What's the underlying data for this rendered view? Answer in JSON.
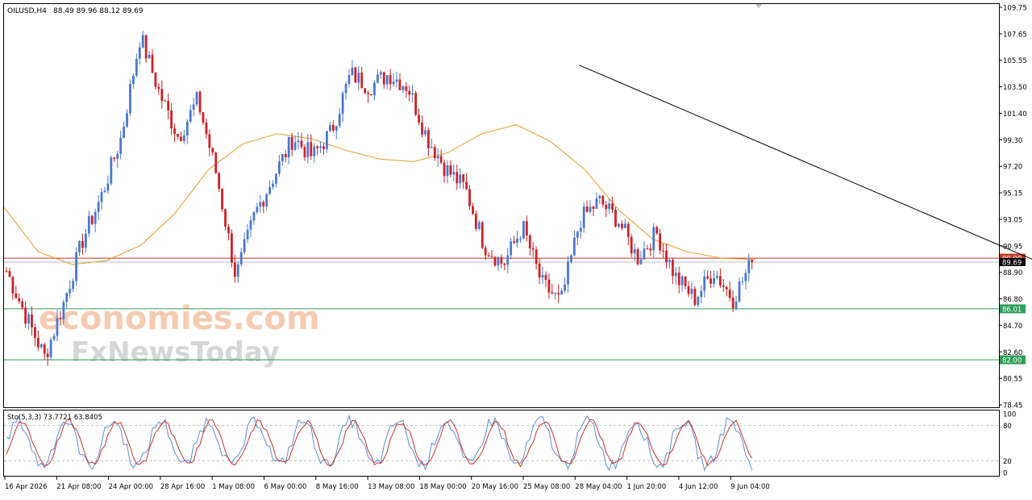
{
  "chart_data": {
    "type": "candlestick",
    "symbol_label": "OILUSD,H4",
    "ohlc_label": "88.49 89.96 88.12 89.69",
    "price_axis": {
      "ylim": [
        78.45,
        109.75
      ],
      "ticks": [
        "109.75",
        "107.65",
        "105.55",
        "103.50",
        "101.40",
        "99.30",
        "97.20",
        "95.15",
        "93.05",
        "90.95",
        "88.90",
        "86.80",
        "84.70",
        "82.60",
        "80.55",
        "78.45"
      ]
    },
    "time_axis": {
      "ticks": [
        "16 Apr 2026",
        "21 Apr 08:00",
        "24 Apr 00:00",
        "28 Apr 16:00",
        "1 May 08:00",
        "6 May 00:00",
        "8 May 16:00",
        "13 May 08:00",
        "18 May 00:00",
        "20 May 16:00",
        "25 May 08:00",
        "28 May 04:00",
        "1 Jun 20:00",
        "4 Jun 12:00",
        "9 Jun 04:00"
      ]
    },
    "price_anchors": [
      89,
      85.5,
      82.2,
      86.5,
      91.5,
      95,
      99.5,
      107.5,
      103,
      99.5,
      102.5,
      96.5,
      88.5,
      93.5,
      96.5,
      99.5,
      98,
      100,
      104.5,
      103.5,
      104.5,
      103.5,
      99.5,
      97,
      95.5,
      91,
      89.5,
      92.5,
      88,
      86.5,
      93,
      94.5,
      93,
      90,
      92,
      88.5,
      86.8,
      89,
      86.8,
      89.7
    ],
    "moving_average": [
      94,
      90.5,
      89.5,
      89.8,
      91,
      93.5,
      97,
      99,
      99.8,
      99.4,
      98.5,
      97.8,
      97.6,
      98.3,
      99.8,
      100.5,
      99.2,
      97,
      93.8,
      91.5,
      90.5,
      90,
      89.9
    ],
    "current_price": "89.69",
    "levels": [
      {
        "value": 90.0,
        "label": "90.00",
        "color": "#c0392b"
      },
      {
        "value": 86.01,
        "label": "86.01",
        "color": "#2e9e5b"
      },
      {
        "value": 82.0,
        "label": "82.00",
        "color": "#2e9e5b"
      }
    ],
    "trendline": {
      "from": [
        0.578,
        105.2
      ],
      "to": [
        1.135,
        86.5
      ]
    },
    "oscillator": {
      "label": "Sto(5,3,3) 73.7721 63.8405",
      "scale_ticks": [
        "100",
        "80",
        "20",
        "0"
      ],
      "levels": [
        80,
        20
      ]
    },
    "colors": {
      "bull": "#4a78d1",
      "bear": "#d11f26",
      "ma": "#e39b28",
      "trend": "#000000",
      "stoch_main": "#5b8ed6",
      "stoch_signal": "#c8332b"
    }
  },
  "watermark": {
    "line1": "economies.com",
    "line2": "FxNewsToday"
  }
}
